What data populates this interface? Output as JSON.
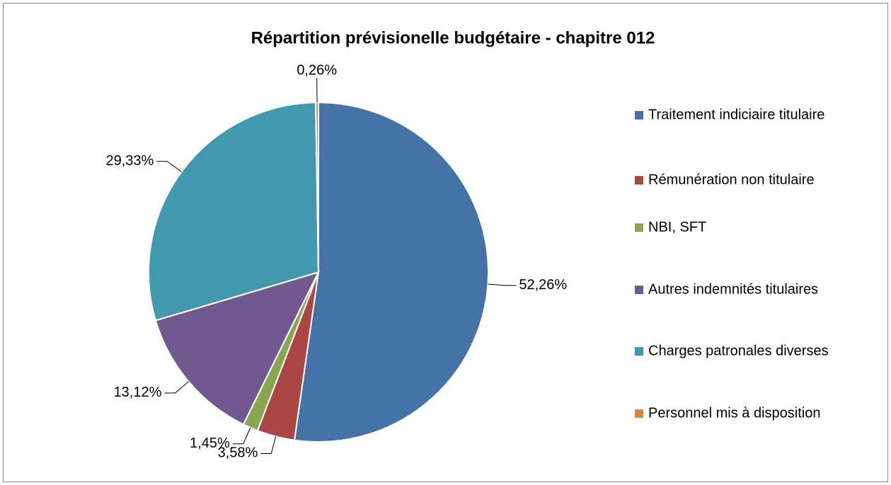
{
  "chart_data": {
    "type": "pie",
    "title": "Répartition prévisionelle budgétaire - chapitre 012",
    "categories": [
      "Traitement indiciaire titulaire",
      "Rémunération non titulaire",
      "NBI, SFT",
      "Autres indemnités titulaires",
      "Charges patronales diverses",
      "Personnel mis à disposition"
    ],
    "values": [
      52.26,
      3.58,
      1.45,
      13.12,
      29.33,
      0.26
    ],
    "value_labels": [
      "52,26%",
      "3,58%",
      "1,45%",
      "13,12%",
      "29,33%",
      "0,26%"
    ],
    "colors": [
      "#4572a7",
      "#aa4643",
      "#89a54e",
      "#71588f",
      "#4198af",
      "#db843d"
    ],
    "legend": "right"
  }
}
